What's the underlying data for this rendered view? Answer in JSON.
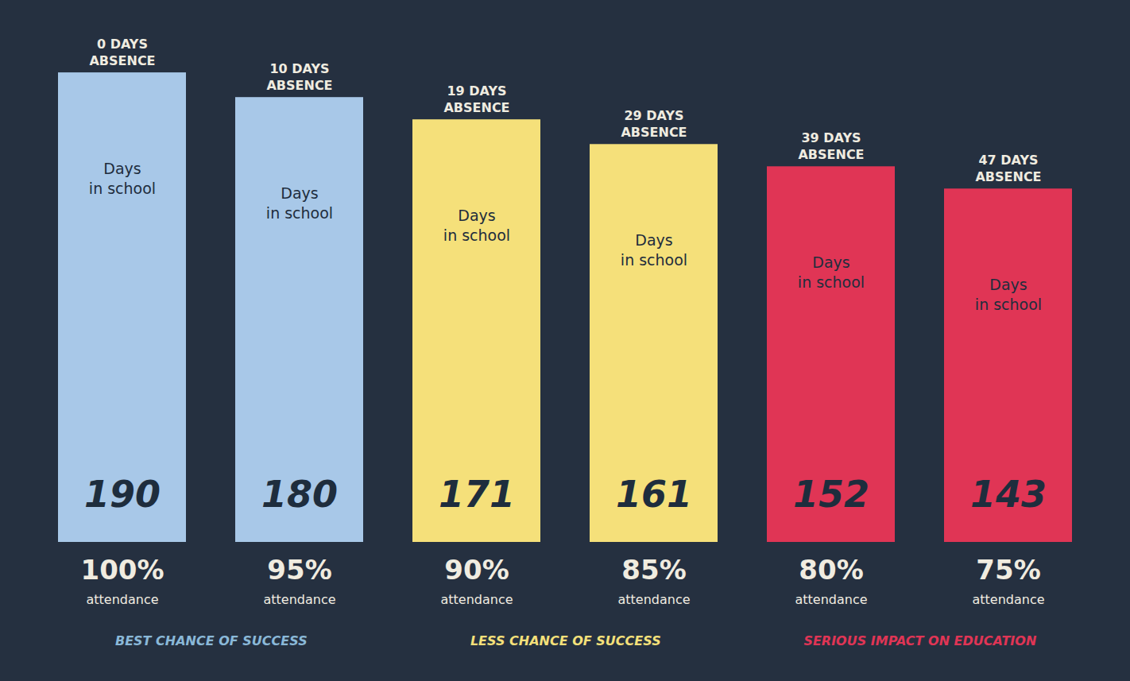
{
  "chart_data": {
    "type": "bar",
    "categories": [
      "0 DAYS\nABSENCE",
      "10 DAYS\nABSENCE",
      "19 DAYS\nABSENCE",
      "29 DAYS\nABSENCE",
      "39 DAYS\nABSENCE",
      "47 DAYS\nABSENCE"
    ],
    "values": [
      190,
      180,
      171,
      161,
      152,
      143
    ],
    "colors": [
      "#a8c8e8",
      "#a8c8e8",
      "#f5e07a",
      "#f5e07a",
      "#e03555",
      "#e03555"
    ],
    "ylim": [
      0,
      200
    ],
    "tick_labels": false,
    "grid": false,
    "data_labels": true,
    "inner_label": "Days\nin school",
    "attendance": {
      "label": "attendance",
      "values": [
        100,
        95,
        90,
        85,
        80,
        75
      ],
      "value_labels": [
        "100%",
        "95%",
        "90%",
        "85%",
        "80%",
        "75%"
      ]
    },
    "groups": [
      {
        "label": "BEST CHANCE OF SUCCESS",
        "color": "#8ab8d8",
        "bars": [
          0,
          1
        ]
      },
      {
        "label": "LESS CHANCE OF SUCCESS",
        "color": "#f5e07a",
        "bars": [
          2,
          3
        ]
      },
      {
        "label": "SERIOUS IMPACT ON EDUCATION",
        "color": "#e03555",
        "bars": [
          4,
          5
        ]
      }
    ],
    "background_color": "#253040",
    "text_color": "#f0ece0",
    "inner_text_color": "#1e2d3d"
  }
}
